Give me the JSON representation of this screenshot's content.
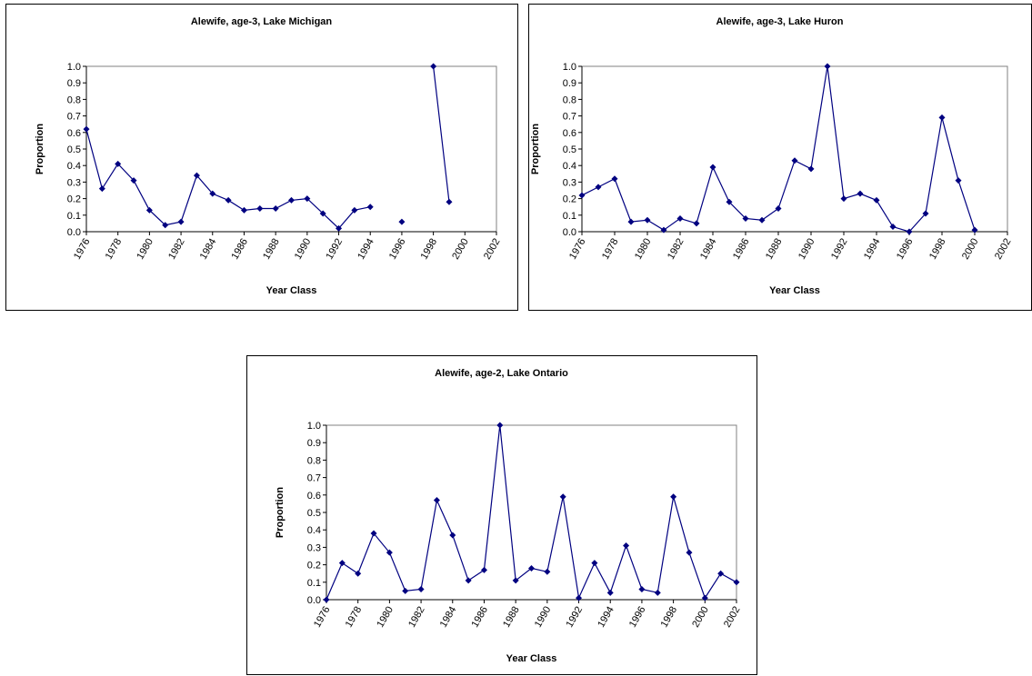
{
  "chart_data": [
    {
      "type": "line",
      "title": "Alewife, age-3, Lake Michigan",
      "x_label": "Year Class",
      "y_label": "Proportion",
      "color": "#000080",
      "x": [
        1976,
        1977,
        1978,
        1979,
        1980,
        1981,
        1982,
        1983,
        1984,
        1985,
        1986,
        1987,
        1988,
        1989,
        1990,
        1991,
        1992,
        1993,
        1994,
        1995,
        1996,
        1997,
        1998,
        1999,
        2000,
        2001,
        2002
      ],
      "values": [
        0.62,
        0.26,
        0.41,
        0.31,
        0.13,
        0.04,
        0.06,
        0.34,
        0.23,
        0.19,
        0.13,
        0.14,
        0.14,
        0.19,
        0.2,
        0.11,
        0.02,
        0.13,
        0.15,
        null,
        0.06,
        null,
        1.0,
        0.18,
        null,
        null,
        null
      ],
      "xlim": [
        1976,
        2002
      ],
      "xticks": [
        1976,
        1978,
        1980,
        1982,
        1984,
        1986,
        1988,
        1990,
        1992,
        1994,
        1996,
        1998,
        2000,
        2002
      ],
      "ylim": [
        0,
        1
      ],
      "yticks": [
        {
          "value": 0,
          "label": "0.0"
        },
        0.1,
        0.2,
        0.3,
        0.4,
        0.5,
        0.6,
        0.7,
        0.8,
        0.9,
        {
          "value": 1,
          "label": "1.0"
        }
      ]
    },
    {
      "type": "line",
      "title": "Alewife, age-3, Lake Huron",
      "x_label": "Year Class",
      "y_label": "Proportion",
      "color": "#000080",
      "x": [
        1976,
        1977,
        1978,
        1979,
        1980,
        1981,
        1982,
        1983,
        1984,
        1985,
        1986,
        1987,
        1988,
        1989,
        1990,
        1991,
        1992,
        1993,
        1994,
        1995,
        1996,
        1997,
        1998,
        1999,
        2000,
        2001,
        2002
      ],
      "values": [
        0.22,
        0.27,
        0.32,
        0.06,
        0.07,
        0.01,
        0.08,
        0.05,
        0.39,
        0.18,
        0.08,
        0.07,
        0.14,
        0.43,
        0.38,
        1.0,
        0.2,
        0.23,
        0.19,
        0.03,
        0.0,
        0.11,
        0.69,
        0.31,
        0.01,
        null,
        null
      ],
      "xlim": [
        1976,
        2002
      ],
      "xticks": [
        1976,
        1978,
        1980,
        1982,
        1984,
        1986,
        1988,
        1990,
        1992,
        1994,
        1996,
        1998,
        2000,
        2002
      ],
      "ylim": [
        0,
        1
      ],
      "yticks": [
        {
          "value": 0,
          "label": "0.0"
        },
        0.1,
        0.2,
        0.3,
        0.4,
        0.5,
        0.6,
        0.7,
        0.8,
        0.9,
        {
          "value": 1,
          "label": "1.0"
        }
      ]
    },
    {
      "type": "line",
      "title": "Alewife, age-2, Lake Ontario",
      "x_label": "Year Class",
      "y_label": "Proportion",
      "color": "#000080",
      "x": [
        1976,
        1977,
        1978,
        1979,
        1980,
        1981,
        1982,
        1983,
        1984,
        1985,
        1986,
        1987,
        1988,
        1989,
        1990,
        1991,
        1992,
        1993,
        1994,
        1995,
        1996,
        1997,
        1998,
        1999,
        2000,
        2001,
        2002
      ],
      "values": [
        0.0,
        0.21,
        0.15,
        0.38,
        0.27,
        0.05,
        0.06,
        0.57,
        0.37,
        0.11,
        0.17,
        1.0,
        0.11,
        0.18,
        0.16,
        0.59,
        0.01,
        0.21,
        0.04,
        0.31,
        0.06,
        0.04,
        0.59,
        0.27,
        0.01,
        0.15,
        0.1
      ],
      "xlim": [
        1976,
        2002
      ],
      "xticks": [
        1976,
        1978,
        1980,
        1982,
        1984,
        1986,
        1988,
        1990,
        1992,
        1994,
        1996,
        1998,
        2000,
        2002
      ],
      "ylim": [
        0,
        1
      ],
      "yticks": [
        {
          "value": 0,
          "label": "0.0"
        },
        0.1,
        0.2,
        0.3,
        0.4,
        0.5,
        0.6,
        0.7,
        0.8,
        0.9,
        {
          "value": 1,
          "label": "1.0"
        }
      ]
    }
  ]
}
